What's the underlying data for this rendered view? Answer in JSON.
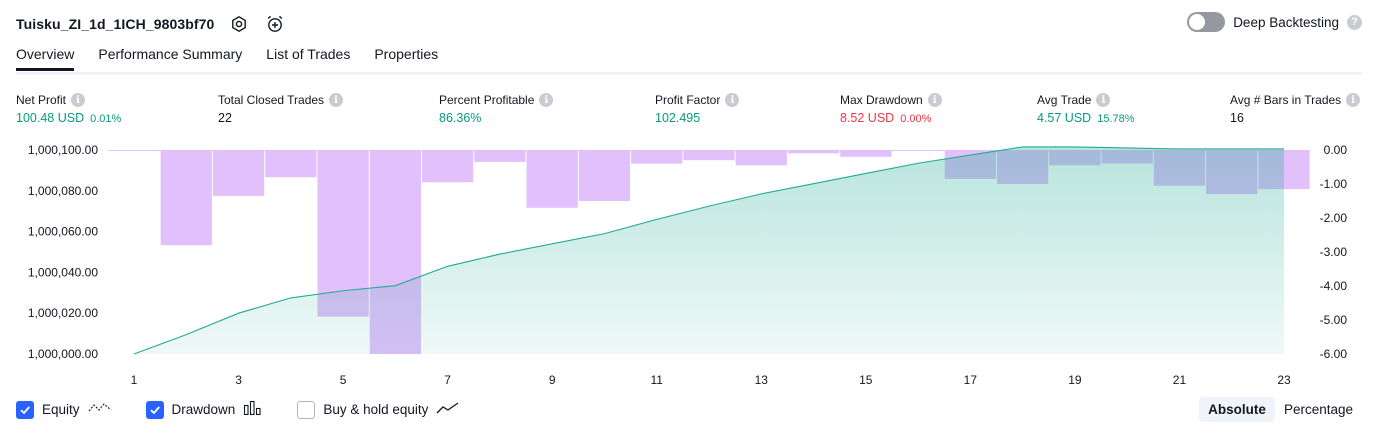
{
  "header": {
    "strategy_name": "Tuisku_ZI_1d_1ICH_9803bf70"
  },
  "deep_backtesting": {
    "label": "Deep Backtesting",
    "help": "?"
  },
  "tabs": [
    {
      "label": "Overview"
    },
    {
      "label": "Performance Summary"
    },
    {
      "label": "List of Trades"
    },
    {
      "label": "Properties"
    }
  ],
  "info_glyph": "i",
  "metrics": {
    "net_profit": {
      "label": "Net Profit",
      "value": "100.48 USD",
      "sub": "0.01%"
    },
    "total_closed_trades": {
      "label": "Total Closed Trades",
      "value": "22"
    },
    "percent_profitable": {
      "label": "Percent Profitable",
      "value": "86.36%"
    },
    "profit_factor": {
      "label": "Profit Factor",
      "value": "102.495"
    },
    "max_drawdown": {
      "label": "Max Drawdown",
      "value": "8.52 USD",
      "sub": "0.00%"
    },
    "avg_trade": {
      "label": "Avg Trade",
      "value": "4.57 USD",
      "sub": "15.78%"
    },
    "avg_bars": {
      "label": "Avg # Bars in Trades",
      "value": "16"
    }
  },
  "colors": {
    "equity_line": "#22ab94",
    "equity_fill": "#22ab94",
    "drawdown_bar": "#e1c0fb",
    "positive": "#089981",
    "negative": "#f23645",
    "checkbox": "#2962ff"
  },
  "chart_data": {
    "type": "line",
    "x": [
      1,
      2,
      3,
      4,
      5,
      6,
      7,
      8,
      9,
      10,
      11,
      12,
      13,
      14,
      15,
      16,
      17,
      18,
      19,
      20,
      21,
      22,
      23
    ],
    "x_ticks": [
      "1",
      "3",
      "5",
      "7",
      "9",
      "11",
      "13",
      "15",
      "17",
      "19",
      "21",
      "23"
    ],
    "left_axis": {
      "ticks": [
        "1,000,100.00",
        "1,000,080.00",
        "1,000,060.00",
        "1,000,040.00",
        "1,000,020.00",
        "1,000,000.00"
      ],
      "ylim": [
        1000000,
        1000100
      ]
    },
    "right_axis": {
      "ticks": [
        "0.00",
        "-1.00",
        "-2.00",
        "-3.00",
        "-4.00",
        "-5.00",
        "-6.00"
      ],
      "ylim": [
        -6,
        0
      ]
    },
    "series": [
      {
        "name": "Equity",
        "type": "area",
        "axis": "left",
        "values": [
          1000000.0,
          1000009.5,
          1000020.0,
          1000027.5,
          1000031.0,
          1000033.5,
          1000043.0,
          1000049.0,
          1000054.0,
          1000059.0,
          1000066.0,
          1000072.5,
          1000078.5,
          1000083.5,
          1000088.5,
          1000093.5,
          1000097.5,
          1000101.5,
          1000101.5,
          1000101.0,
          1000100.5,
          1000100.5,
          1000100.5
        ]
      },
      {
        "name": "Drawdown",
        "type": "bar",
        "axis": "right",
        "values": [
          0,
          -2.8,
          -1.35,
          -0.8,
          -4.9,
          -6.0,
          -0.95,
          -0.35,
          -1.7,
          -1.5,
          -0.4,
          -0.3,
          -0.45,
          -0.1,
          -0.2,
          0,
          -0.85,
          -1.0,
          -0.45,
          -0.4,
          -1.05,
          -1.3,
          -1.15
        ]
      }
    ],
    "legend": [
      {
        "name": "Equity",
        "checked": true
      },
      {
        "name": "Drawdown",
        "checked": true
      },
      {
        "name": "Buy & hold equity",
        "checked": false
      }
    ]
  },
  "display_mode": {
    "absolute": "Absolute",
    "percentage": "Percentage",
    "selected": "Absolute"
  }
}
